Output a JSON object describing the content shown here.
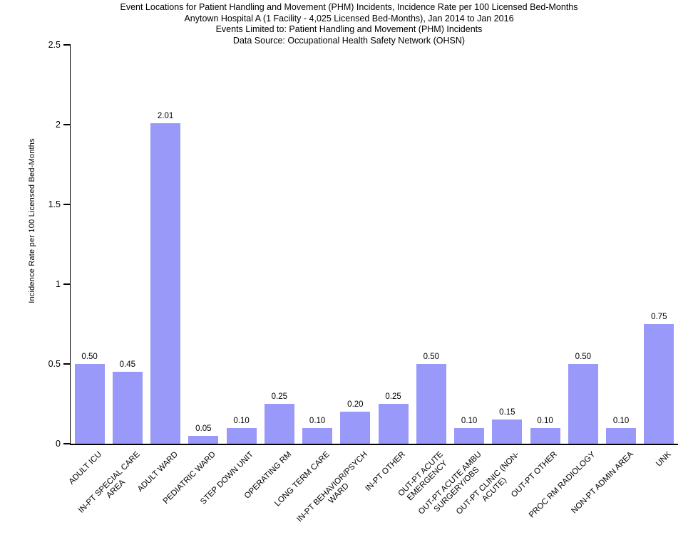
{
  "chart_data": {
    "type": "bar",
    "title_lines": [
      "Event Locations for Patient Handling and Movement (PHM) Incidents, Incidence Rate per 100 Licensed Bed-Months",
      "Anytown Hospital A (1 Facility - 4,025 Licensed Bed-Months), Jan 2014 to Jan 2016",
      "Events Limited to: Patient Handling and Movement (PHM) Incidents",
      "Data Source: Occupational Health Safety Network (OHSN)"
    ],
    "ylabel": "Incidence Rate per 100 Licensed Bed-Months",
    "xlabel": "",
    "ylim": [
      0,
      2.5
    ],
    "yticks": [
      0,
      0.5,
      1,
      1.5,
      2,
      2.5
    ],
    "ytick_labels": [
      "0",
      "0.5",
      "1",
      "1.5",
      "2",
      "2.5"
    ],
    "grid": false,
    "legend": false,
    "bar_color": "#9999FA",
    "text_color": "#000000",
    "background_color": "#FFFFFF",
    "categories": [
      "ADULT ICU",
      "IN-PT SPECIAL CARE\nAREA",
      "ADULT WARD",
      "PEDIATRIC WARD",
      "STEP DOWN UNIT",
      "OPERATING RM",
      "LONG TERM CARE",
      "IN-PT BEHAVIOR/PSYCH\nWARD",
      "IN-PT OTHER",
      "OUT-PT ACUTE\nEMERGENCY",
      "OUT-PT ACUTE AMBU\nSURGERY/OBS",
      "OUT-PT CLINIC (NON-\nACUTE)",
      "OUT-PT OTHER",
      "PROC RM RADIOLOGY",
      "NON-PT ADMIN AREA",
      "UNK"
    ],
    "values": [
      0.5,
      0.45,
      2.01,
      0.05,
      0.1,
      0.25,
      0.1,
      0.2,
      0.25,
      0.5,
      0.1,
      0.15,
      0.1,
      0.5,
      0.1,
      0.75
    ],
    "value_labels": [
      "0.50",
      "0.45",
      "2.01",
      "0.05",
      "0.10",
      "0.25",
      "0.10",
      "0.20",
      "0.25",
      "0.50",
      "0.10",
      "0.15",
      "0.10",
      "0.50",
      "0.10",
      "0.75"
    ]
  }
}
